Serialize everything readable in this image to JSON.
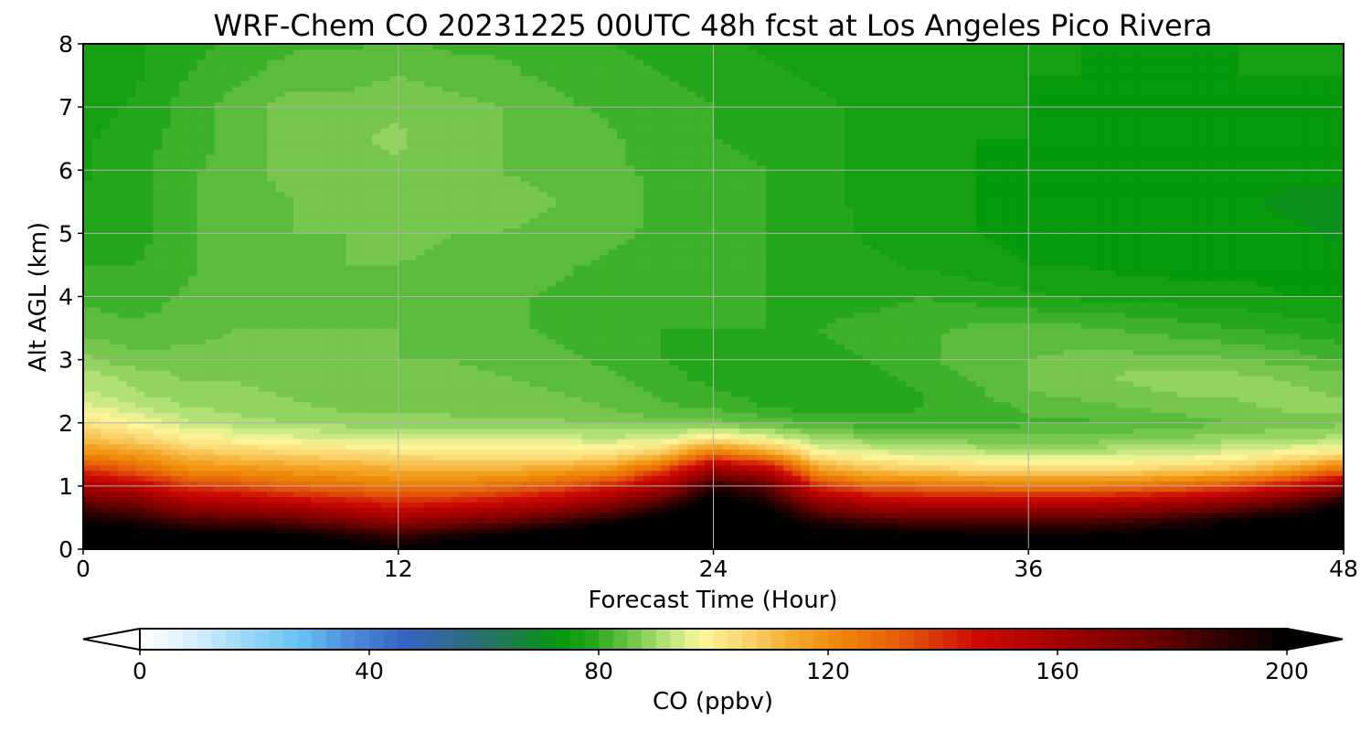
{
  "chart_data": {
    "type": "heatmap",
    "title": "WRF-Chem CO  20231225 00UTC 48h fcst at Los Angeles Pico Rivera",
    "xlabel": "Forecast Time (Hour)",
    "ylabel": "Alt AGL (km)",
    "xlim": [
      0,
      48
    ],
    "ylim": [
      0,
      8
    ],
    "xticks": [
      0,
      12,
      24,
      36,
      48
    ],
    "xtick_labels": [
      "0",
      "12",
      "24",
      "36",
      "48"
    ],
    "yticks": [
      0,
      1,
      2,
      3,
      4,
      5,
      6,
      7,
      8
    ],
    "ytick_labels": [
      "0",
      "1",
      "2",
      "3",
      "4",
      "5",
      "6",
      "7",
      "8"
    ],
    "grid": true,
    "x_hours": [
      0,
      2,
      4,
      6,
      8,
      10,
      12,
      14,
      16,
      18,
      20,
      22,
      24,
      26,
      28,
      30,
      32,
      34,
      36,
      38,
      40,
      42,
      44,
      46,
      48
    ],
    "y_km": [
      0.0,
      0.25,
      0.5,
      0.75,
      1.0,
      1.25,
      1.5,
      1.75,
      2.0,
      2.25,
      2.5,
      2.75,
      3.0,
      3.5,
      4.0,
      4.5,
      5.0,
      5.5,
      6.0,
      6.5,
      7.0,
      7.5,
      8.0
    ],
    "co_ppbv": [
      [
        215,
        215,
        212,
        212,
        210,
        205,
        200,
        205,
        210,
        212,
        215,
        215,
        215,
        215,
        212,
        210,
        208,
        205,
        205,
        205,
        208,
        210,
        212,
        214,
        215
      ],
      [
        205,
        205,
        200,
        200,
        198,
        192,
        185,
        192,
        198,
        205,
        210,
        212,
        215,
        212,
        205,
        202,
        200,
        198,
        198,
        198,
        200,
        202,
        205,
        208,
        210
      ],
      [
        195,
        190,
        180,
        178,
        175,
        168,
        160,
        166,
        172,
        180,
        190,
        202,
        210,
        205,
        188,
        180,
        178,
        178,
        178,
        178,
        182,
        188,
        195,
        200,
        205
      ],
      [
        178,
        172,
        158,
        155,
        150,
        145,
        140,
        143,
        148,
        155,
        165,
        182,
        205,
        195,
        165,
        155,
        152,
        152,
        152,
        152,
        155,
        160,
        168,
        180,
        195
      ],
      [
        160,
        152,
        138,
        135,
        130,
        128,
        125,
        125,
        128,
        133,
        142,
        158,
        190,
        180,
        140,
        130,
        128,
        126,
        125,
        125,
        127,
        130,
        136,
        148,
        165
      ],
      [
        140,
        132,
        122,
        120,
        118,
        116,
        114,
        113,
        114,
        116,
        120,
        135,
        165,
        155,
        118,
        110,
        108,
        106,
        105,
        105,
        106,
        108,
        110,
        118,
        130
      ],
      [
        122,
        118,
        110,
        108,
        106,
        105,
        104,
        103,
        102,
        102,
        103,
        110,
        130,
        120,
        100,
        97,
        95,
        94,
        93,
        93,
        94,
        95,
        97,
        100,
        104
      ],
      [
        110,
        106,
        100,
        98,
        96,
        95,
        94,
        94,
        94,
        94,
        93,
        95,
        102,
        97,
        90,
        88,
        87,
        86,
        86,
        86,
        87,
        88,
        89,
        90,
        91
      ],
      [
        102,
        98,
        93,
        91,
        90,
        89,
        88,
        88,
        88,
        88,
        87,
        86,
        86,
        84,
        82,
        81,
        81,
        81,
        82,
        82,
        83,
        84,
        85,
        86,
        87
      ],
      [
        96,
        93,
        90,
        89,
        88,
        87,
        87,
        87,
        86,
        86,
        85,
        83,
        82,
        80,
        79,
        79,
        80,
        81,
        83,
        84,
        85,
        86,
        87,
        88,
        88
      ],
      [
        93,
        90,
        88,
        88,
        87,
        87,
        86,
        86,
        86,
        85,
        84,
        82,
        80,
        79,
        78,
        79,
        80,
        82,
        85,
        86,
        87,
        88,
        88,
        88,
        87
      ],
      [
        91,
        89,
        87,
        87,
        87,
        86,
        86,
        86,
        85,
        84,
        83,
        81,
        79,
        78,
        78,
        79,
        81,
        83,
        85,
        87,
        88,
        88,
        88,
        87,
        86
      ],
      [
        88,
        86,
        86,
        86,
        86,
        86,
        85,
        85,
        84,
        83,
        82,
        80,
        79,
        79,
        79,
        80,
        82,
        84,
        85,
        86,
        86,
        86,
        85,
        84,
        82
      ],
      [
        84,
        83,
        84,
        85,
        85,
        85,
        85,
        84,
        83,
        82,
        81,
        80,
        80,
        80,
        80,
        81,
        82,
        83,
        83,
        83,
        82,
        81,
        80,
        79,
        78
      ],
      [
        82,
        81,
        83,
        84,
        84,
        84,
        84,
        84,
        83,
        82,
        81,
        80,
        80,
        80,
        79,
        79,
        80,
        79,
        78,
        77,
        77,
        76,
        76,
        75,
        75
      ],
      [
        80,
        80,
        82,
        84,
        84,
        85,
        85,
        84,
        84,
        83,
        82,
        81,
        80,
        80,
        79,
        78,
        77,
        76,
        75,
        75,
        74,
        74,
        74,
        74,
        74
      ],
      [
        79,
        79,
        82,
        84,
        85,
        85,
        86,
        85,
        85,
        84,
        83,
        82,
        81,
        80,
        79,
        77,
        76,
        75,
        74,
        74,
        73,
        73,
        73,
        73,
        72
      ],
      [
        78,
        79,
        82,
        84,
        85,
        86,
        86,
        86,
        86,
        85,
        84,
        82,
        81,
        80,
        78,
        77,
        76,
        75,
        74,
        74,
        73,
        73,
        73,
        72,
        72
      ],
      [
        77,
        79,
        82,
        84,
        86,
        86,
        87,
        86,
        85,
        84,
        83,
        82,
        81,
        80,
        78,
        77,
        76,
        75,
        74,
        74,
        73,
        73,
        73,
        73,
        73
      ],
      [
        77,
        79,
        81,
        84,
        86,
        87,
        88,
        86,
        85,
        84,
        83,
        81,
        80,
        79,
        78,
        77,
        76,
        75,
        75,
        74,
        74,
        74,
        74,
        73,
        73
      ],
      [
        76,
        78,
        81,
        84,
        86,
        86,
        87,
        86,
        85,
        83,
        82,
        81,
        80,
        79,
        78,
        77,
        76,
        75,
        75,
        74,
        74,
        74,
        74,
        74,
        74
      ],
      [
        76,
        77,
        80,
        82,
        84,
        84,
        85,
        84,
        83,
        82,
        81,
        80,
        79,
        78,
        77,
        76,
        76,
        75,
        75,
        75,
        74,
        74,
        75,
        75,
        75
      ],
      [
        76,
        77,
        79,
        81,
        82,
        82,
        83,
        82,
        82,
        81,
        80,
        79,
        78,
        77,
        77,
        76,
        76,
        75,
        75,
        75,
        75,
        75,
        75,
        75,
        75
      ]
    ],
    "colorbar": {
      "label": "CO  (ppbv)",
      "min": 0,
      "max": 200,
      "ticks": [
        0,
        40,
        80,
        120,
        160,
        200
      ],
      "tick_labels": [
        "0",
        "40",
        "80",
        "120",
        "160",
        "200"
      ],
      "extend": "both",
      "stops": [
        {
          "v": 0,
          "c": "#ffffff"
        },
        {
          "v": 10,
          "c": "#d4eefb"
        },
        {
          "v": 20,
          "c": "#8fd4f6"
        },
        {
          "v": 28,
          "c": "#66c2f2"
        },
        {
          "v": 36,
          "c": "#4f8fdc"
        },
        {
          "v": 46,
          "c": "#3565c4"
        },
        {
          "v": 56,
          "c": "#2d6a86"
        },
        {
          "v": 64,
          "c": "#1f7a4f"
        },
        {
          "v": 74,
          "c": "#059a0a"
        },
        {
          "v": 80,
          "c": "#2eab20"
        },
        {
          "v": 86,
          "c": "#74c64a"
        },
        {
          "v": 92,
          "c": "#b8e47c"
        },
        {
          "v": 98,
          "c": "#fff69a"
        },
        {
          "v": 106,
          "c": "#f8d26a"
        },
        {
          "v": 114,
          "c": "#f5aa2c"
        },
        {
          "v": 122,
          "c": "#ee8808"
        },
        {
          "v": 132,
          "c": "#e65e0a"
        },
        {
          "v": 146,
          "c": "#cc0a04"
        },
        {
          "v": 160,
          "c": "#a60000"
        },
        {
          "v": 176,
          "c": "#6e0000"
        },
        {
          "v": 190,
          "c": "#2a0000"
        },
        {
          "v": 200,
          "c": "#000000"
        }
      ]
    }
  }
}
